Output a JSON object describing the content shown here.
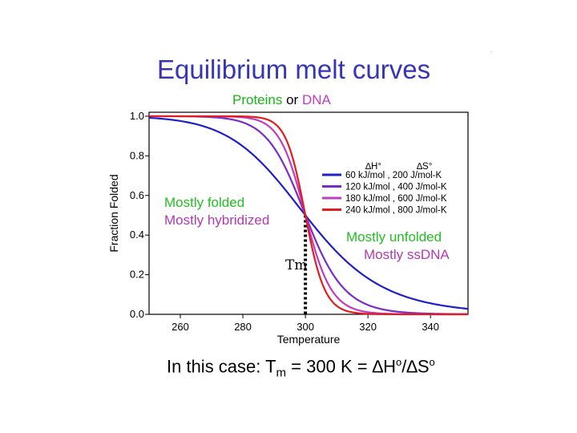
{
  "slide": {
    "title": "Equilibrium melt curves",
    "subtitle_a": "Proteins",
    "subtitle_or": " or ",
    "subtitle_b": "DNA",
    "corner_mark": ".",
    "caption": {
      "prefix": "In this case: T",
      "sub": "m",
      "middle": " = 300 K = ∆H",
      "sup1": "o",
      "slash": "/∆S",
      "sup2": "o"
    }
  },
  "colors": {
    "title": "#3535b5",
    "proteins": "#17b517",
    "dna": "#c23bc2",
    "green_text": "#22c022",
    "magenta_text": "#b23ab2",
    "series": [
      "#1f1fc8",
      "#7a2cc8",
      "#c23bc2",
      "#e01e1e"
    ]
  },
  "chart_data": {
    "type": "line",
    "title": "",
    "xlabel": "Temperature",
    "ylabel": "Fraction Folded",
    "xlim": [
      250,
      352
    ],
    "ylim": [
      0,
      1.02
    ],
    "xticks": [
      "260",
      "280",
      "300",
      "320",
      "340"
    ],
    "yticks": [
      "0.0",
      "0.2",
      "0.4",
      "0.6",
      "0.8",
      "1.0"
    ],
    "legend_headers": [
      "∆H°",
      "∆S°"
    ],
    "series": [
      {
        "name": "60 kJ/mol , 200 J/mol-K",
        "dH_kJ": 60,
        "dS_J": 200
      },
      {
        "name": "120 kJ/mol , 400 J/mol-K",
        "dH_kJ": 120,
        "dS_J": 400
      },
      {
        "name": "180 kJ/mol , 600 J/mol-K",
        "dH_kJ": 180,
        "dS_J": 600
      },
      {
        "name": "240 kJ/mol , 800 J/mol-K",
        "dH_kJ": 240,
        "dS_J": 800
      }
    ],
    "annotations": {
      "folded_1": "Mostly folded",
      "folded_2": "Mostly hybridized",
      "unfolded_1": "Mostly unfolded",
      "unfolded_2": "Mostly ssDNA",
      "tm_label": "Tm",
      "tm_x": 300
    }
  }
}
